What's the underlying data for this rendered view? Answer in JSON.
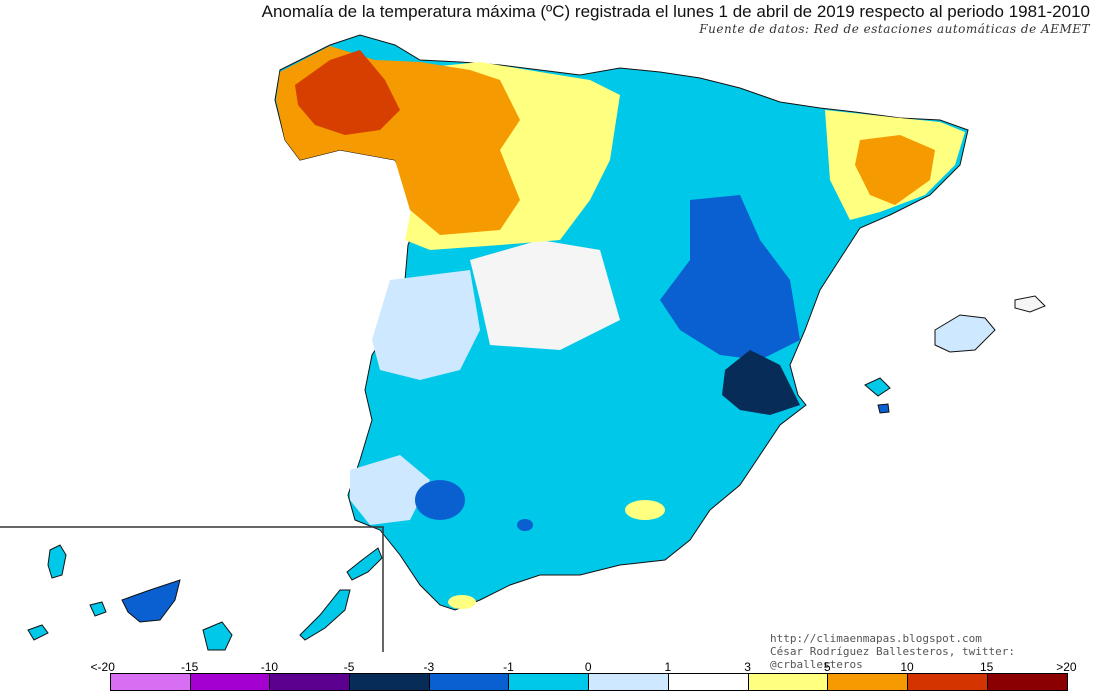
{
  "header": {
    "title": "Anomalía de la temperatura máxima (ºC) registrada el lunes 1 de abril de 2019 respecto al periodo 1981-2010",
    "source": "Fuente de datos: Red de estaciones automáticas de AEMET"
  },
  "credits": {
    "url": "http://climaenmapas.blogspot.com",
    "author": "César Rodríguez Ballesteros, twitter: @crballesteros"
  },
  "legend": {
    "ticks": [
      "<-20",
      "-15",
      "-10",
      "-5",
      "-3",
      "-1",
      "0",
      "1",
      "3",
      "5",
      "10",
      "15",
      ">20"
    ],
    "colors": [
      "#d86ef2",
      "#a400d0",
      "#5c0090",
      "#062c57",
      "#0a5fd1",
      "#00c8e8",
      "#cde8ff",
      "#ffffff",
      "#ffff80",
      "#f59a00",
      "#d43500",
      "#8a0000",
      "#6a3800"
    ]
  },
  "regions": {
    "galicia": "#d63f00",
    "northwest": "#f59a00",
    "castilla_north": "#ffff80",
    "central": "#f5f5f5",
    "light_blue": "#cde8ff",
    "cyan": "#00c8e8",
    "blue": "#0a5fd1",
    "navy": "#062c57"
  }
}
